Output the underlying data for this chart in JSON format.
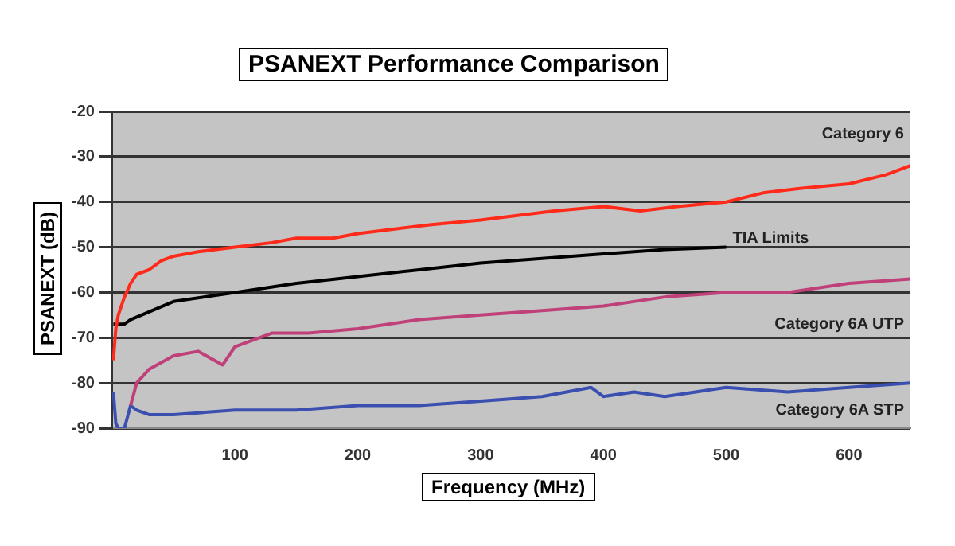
{
  "chart_data": {
    "type": "line",
    "title": "PSANEXT Performance Comparison",
    "xlabel": "Frequency (MHz)",
    "ylabel": "PSANEXT (dB)",
    "xlim": [
      0,
      650
    ],
    "xticks": [
      100,
      200,
      300,
      400,
      500,
      600
    ],
    "ylim": [
      -90,
      -20
    ],
    "yticks": [
      -90,
      -80,
      -70,
      -60,
      -50,
      -40,
      -30,
      -20
    ],
    "grid": "y",
    "legend": false,
    "marker": "none",
    "series": [
      {
        "name": "Category 6",
        "color": "#ff2a1a",
        "x": [
          1,
          3,
          5,
          10,
          15,
          20,
          30,
          40,
          50,
          70,
          100,
          130,
          150,
          180,
          200,
          230,
          260,
          300,
          330,
          360,
          400,
          430,
          460,
          500,
          530,
          560,
          600,
          630,
          650
        ],
        "values": [
          -75,
          -68,
          -65,
          -61,
          -58,
          -56,
          -55,
          -53,
          -52,
          -51,
          -50,
          -49,
          -48,
          -48,
          -47,
          -46,
          -45,
          -44,
          -43,
          -42,
          -41,
          -42,
          -41,
          -40,
          -38,
          -37,
          -36,
          -34,
          -32
        ]
      },
      {
        "name": "TIA Limits",
        "color": "#000000",
        "x": [
          1,
          10,
          15,
          50,
          100,
          150,
          200,
          250,
          300,
          350,
          400,
          450,
          500
        ],
        "values": [
          -67,
          -67,
          -66,
          -62,
          -60,
          -58,
          -56.5,
          -55,
          -53.5,
          -52.5,
          -51.5,
          -50.5,
          -50
        ]
      },
      {
        "name": "Category 6A UTP",
        "color": "#c0407a",
        "x": [
          15,
          20,
          30,
          50,
          70,
          90,
          100,
          130,
          160,
          200,
          250,
          300,
          350,
          400,
          450,
          500,
          550,
          600,
          650
        ],
        "values": [
          -85,
          -80,
          -77,
          -74,
          -73,
          -76,
          -72,
          -69,
          -69,
          -68,
          -66,
          -65,
          -64,
          -63,
          -61,
          -60,
          -60,
          -58,
          -57
        ]
      },
      {
        "name": "Category 6A STP",
        "color": "#3a4fb0",
        "x": [
          1,
          3,
          5,
          10,
          15,
          20,
          30,
          50,
          100,
          150,
          200,
          250,
          300,
          350,
          390,
          400,
          425,
          450,
          500,
          550,
          600,
          650
        ],
        "values": [
          -82,
          -89,
          -90,
          -90,
          -85,
          -86,
          -87,
          -87,
          -86,
          -86,
          -85,
          -85,
          -84,
          -83,
          -81,
          -83,
          -82,
          -83,
          -81,
          -82,
          -81,
          -80
        ]
      }
    ]
  }
}
